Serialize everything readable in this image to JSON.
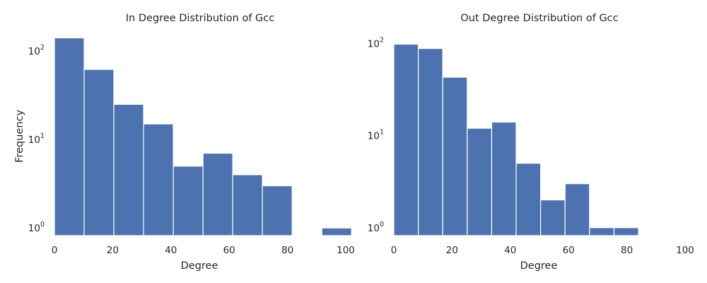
{
  "chart_data": [
    {
      "type": "bar",
      "title": "In Degree Distribution of Gcc",
      "xlabel": "Degree",
      "ylabel": "Frequency",
      "xlim": [
        0,
        100
      ],
      "ylim": [
        0.82,
        145
      ],
      "yscale": "log",
      "grid": false,
      "bar_color": "#4c72b0",
      "bin_edges": [
        0,
        10.2,
        20.4,
        30.6,
        40.8,
        51,
        61.2,
        71.4,
        81.6,
        91.8,
        102
      ],
      "values": [
        141,
        62,
        25,
        15,
        5,
        7,
        4,
        3,
        0,
        1
      ],
      "xticks": [
        "0",
        "20",
        "40",
        "60",
        "80",
        "100"
      ],
      "yticks": [
        {
          "base": "10",
          "exp": "0"
        },
        {
          "base": "10",
          "exp": "1"
        },
        {
          "base": "10",
          "exp": "2"
        }
      ]
    },
    {
      "type": "bar",
      "title": "Out Degree Distribution of Gcc",
      "xlabel": "Degree",
      "ylabel": "",
      "xlim": [
        0,
        100
      ],
      "ylim": [
        0.82,
        118
      ],
      "yscale": "log",
      "grid": false,
      "bar_color": "#4c72b0",
      "bin_edges": [
        0,
        8.4,
        16.8,
        25.2,
        33.6,
        42,
        50.4,
        58.8,
        67.2,
        75.6,
        84
      ],
      "values": [
        98,
        88,
        43,
        12,
        14,
        5,
        2,
        3,
        1,
        1
      ],
      "xticks": [
        "0",
        "20",
        "40",
        "60",
        "80",
        "100"
      ],
      "yticks": [
        {
          "base": "10",
          "exp": "0"
        },
        {
          "base": "10",
          "exp": "1"
        },
        {
          "base": "10",
          "exp": "2"
        }
      ]
    }
  ]
}
